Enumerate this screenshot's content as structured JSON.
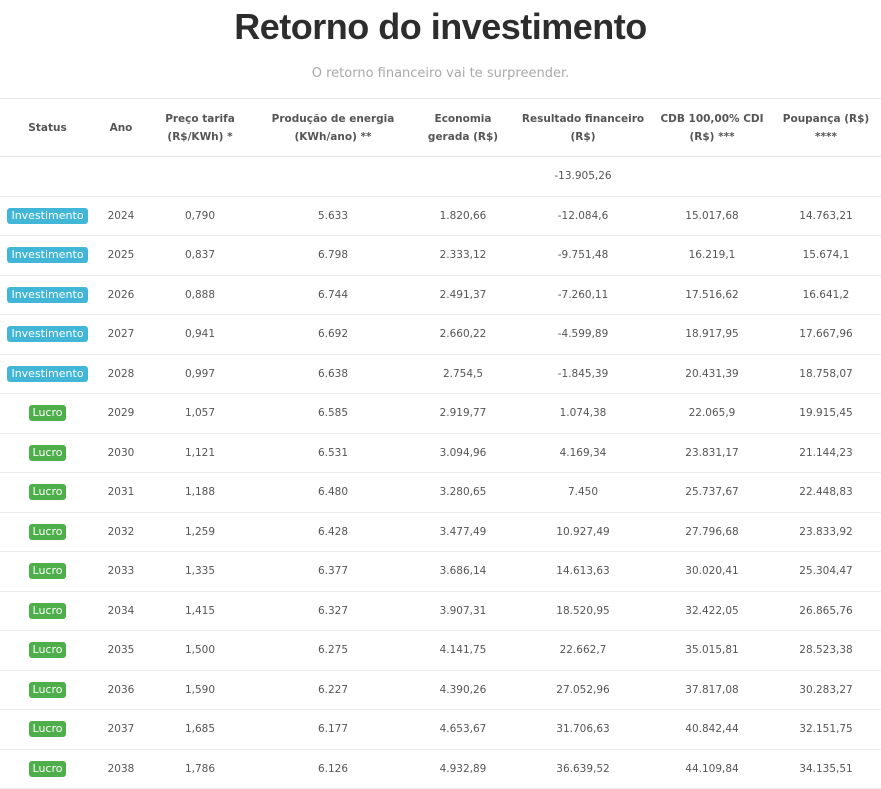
{
  "header": {
    "title": "Retorno do investimento",
    "subtitle": "O retorno financeiro vai te surpreender."
  },
  "colors": {
    "investimento": "#41b6d6",
    "lucro": "#4dae4a"
  },
  "table": {
    "columns": [
      "Status",
      "Ano",
      "Preço tarifa (R$/KWh) *",
      "Produção de energia (KWh/ano) **",
      "Economia gerada (R$)",
      "Resultado financeiro (R$)",
      "CDB 100,00% CDI (R$) ***",
      "Poupança (R$) ****"
    ],
    "initial_row": {
      "resultado": "-13.905,26"
    },
    "rows": [
      {
        "status": "Investimento",
        "ano": "2024",
        "preco": "0,790",
        "producao": "5.633",
        "economia": "1.820,66",
        "resultado": "-12.084,6",
        "cdb": "15.017,68",
        "poupanca": "14.763,21"
      },
      {
        "status": "Investimento",
        "ano": "2025",
        "preco": "0,837",
        "producao": "6.798",
        "economia": "2.333,12",
        "resultado": "-9.751,48",
        "cdb": "16.219,1",
        "poupanca": "15.674,1"
      },
      {
        "status": "Investimento",
        "ano": "2026",
        "preco": "0,888",
        "producao": "6.744",
        "economia": "2.491,37",
        "resultado": "-7.260,11",
        "cdb": "17.516,62",
        "poupanca": "16.641,2"
      },
      {
        "status": "Investimento",
        "ano": "2027",
        "preco": "0,941",
        "producao": "6.692",
        "economia": "2.660,22",
        "resultado": "-4.599,89",
        "cdb": "18.917,95",
        "poupanca": "17.667,96"
      },
      {
        "status": "Investimento",
        "ano": "2028",
        "preco": "0,997",
        "producao": "6.638",
        "economia": "2.754,5",
        "resultado": "-1.845,39",
        "cdb": "20.431,39",
        "poupanca": "18.758,07"
      },
      {
        "status": "Lucro",
        "ano": "2029",
        "preco": "1,057",
        "producao": "6.585",
        "economia": "2.919,77",
        "resultado": "1.074,38",
        "cdb": "22.065,9",
        "poupanca": "19.915,45"
      },
      {
        "status": "Lucro",
        "ano": "2030",
        "preco": "1,121",
        "producao": "6.531",
        "economia": "3.094,96",
        "resultado": "4.169,34",
        "cdb": "23.831,17",
        "poupanca": "21.144,23"
      },
      {
        "status": "Lucro",
        "ano": "2031",
        "preco": "1,188",
        "producao": "6.480",
        "economia": "3.280,65",
        "resultado": "7.450",
        "cdb": "25.737,67",
        "poupanca": "22.448,83"
      },
      {
        "status": "Lucro",
        "ano": "2032",
        "preco": "1,259",
        "producao": "6.428",
        "economia": "3.477,49",
        "resultado": "10.927,49",
        "cdb": "27.796,68",
        "poupanca": "23.833,92"
      },
      {
        "status": "Lucro",
        "ano": "2033",
        "preco": "1,335",
        "producao": "6.377",
        "economia": "3.686,14",
        "resultado": "14.613,63",
        "cdb": "30.020,41",
        "poupanca": "25.304,47"
      },
      {
        "status": "Lucro",
        "ano": "2034",
        "preco": "1,415",
        "producao": "6.327",
        "economia": "3.907,31",
        "resultado": "18.520,95",
        "cdb": "32.422,05",
        "poupanca": "26.865,76"
      },
      {
        "status": "Lucro",
        "ano": "2035",
        "preco": "1,500",
        "producao": "6.275",
        "economia": "4.141,75",
        "resultado": "22.662,7",
        "cdb": "35.015,81",
        "poupanca": "28.523,38"
      },
      {
        "status": "Lucro",
        "ano": "2036",
        "preco": "1,590",
        "producao": "6.227",
        "economia": "4.390,26",
        "resultado": "27.052,96",
        "cdb": "37.817,08",
        "poupanca": "30.283,27"
      },
      {
        "status": "Lucro",
        "ano": "2037",
        "preco": "1,685",
        "producao": "6.177",
        "economia": "4.653,67",
        "resultado": "31.706,63",
        "cdb": "40.842,44",
        "poupanca": "32.151,75"
      },
      {
        "status": "Lucro",
        "ano": "2038",
        "preco": "1,786",
        "producao": "6.126",
        "economia": "4.932,89",
        "resultado": "36.639,52",
        "cdb": "44.109,84",
        "poupanca": "34.135,51"
      }
    ]
  }
}
